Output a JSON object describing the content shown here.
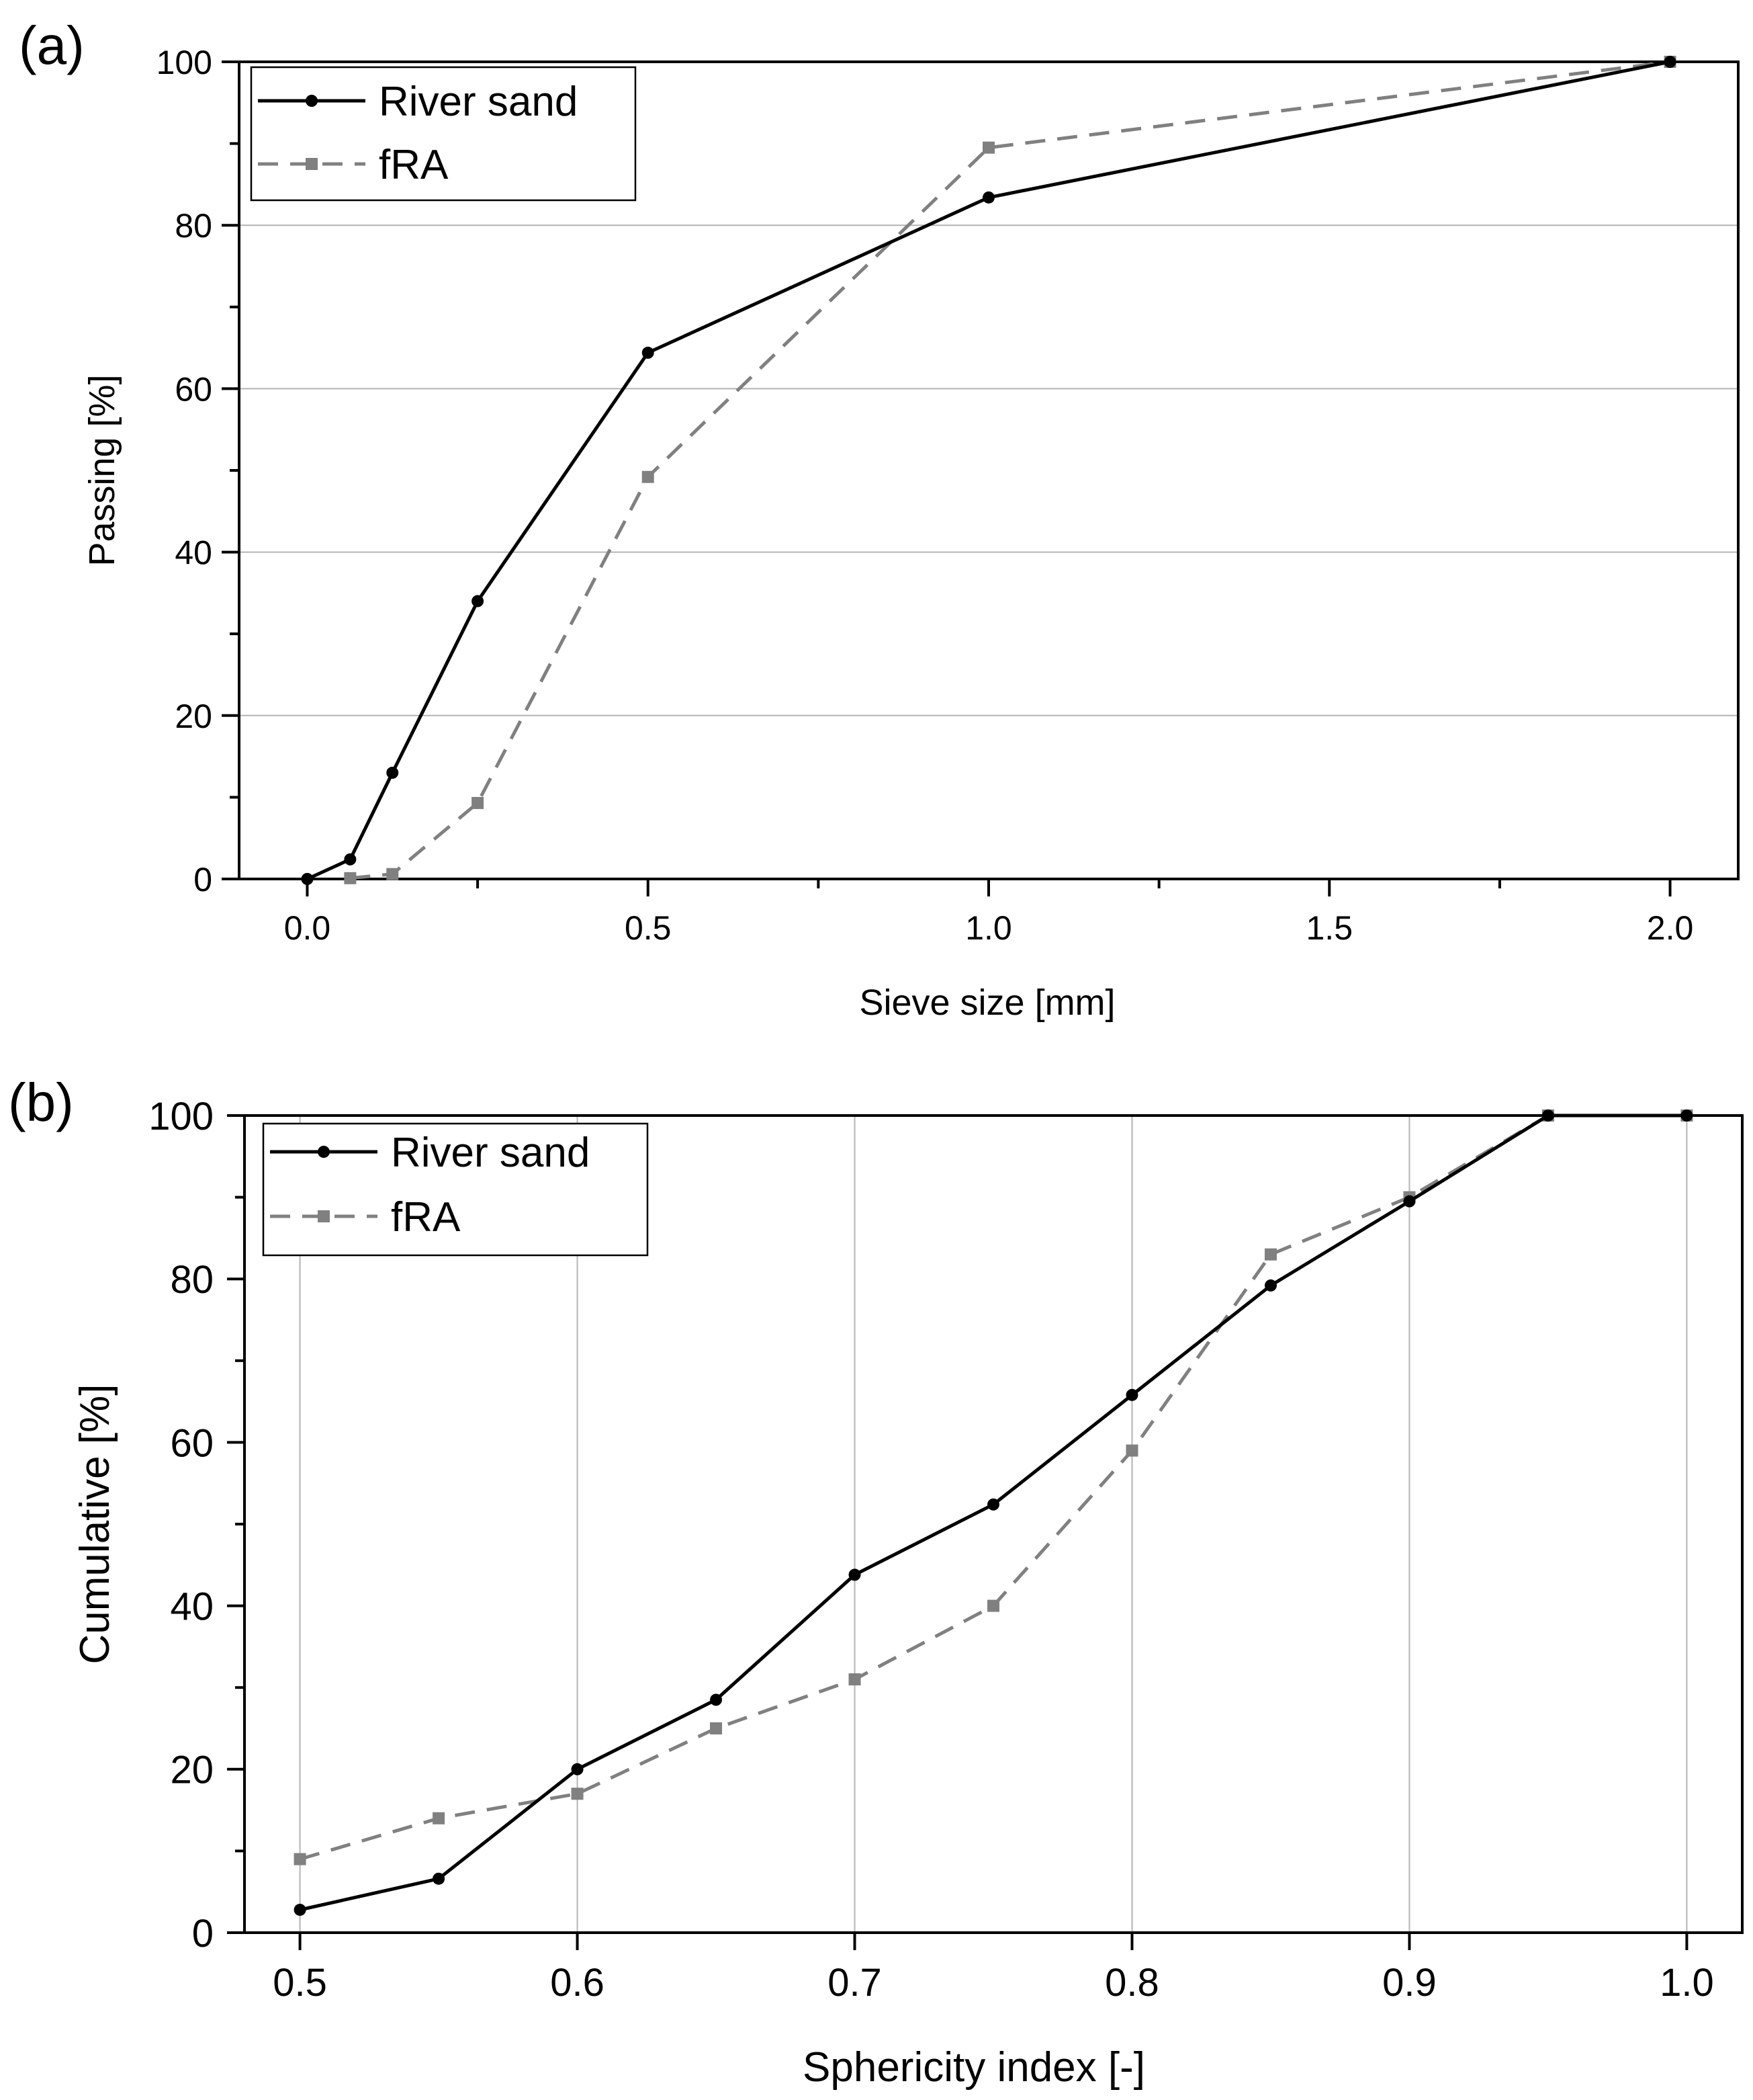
{
  "chart_data": [
    {
      "panel_label": "(a)",
      "type": "line",
      "xlabel": "Sieve size [mm]",
      "ylabel": "Passing [%]",
      "xlim": [
        -0.1,
        2.1
      ],
      "ylim": [
        0,
        100
      ],
      "xticks": [
        "0.0",
        "0.5",
        "1.0",
        "1.5",
        "2.0"
      ],
      "yticks": [
        "0",
        "20",
        "40",
        "60",
        "80",
        "100"
      ],
      "grid": "horizontal",
      "legend_position": "top-left",
      "series": [
        {
          "name": "River sand",
          "color": "#000000",
          "marker": "circle",
          "dash": "solid",
          "x": [
            0,
            0.063,
            0.125,
            0.25,
            0.5,
            1.0,
            2.0
          ],
          "y": [
            0,
            2.4,
            13.0,
            34.0,
            64.4,
            83.4,
            100
          ]
        },
        {
          "name": "fRA",
          "color": "#808080",
          "marker": "square",
          "dash": "dashed",
          "x": [
            0.063,
            0.125,
            0.25,
            0.5,
            1.0,
            2.0
          ],
          "y": [
            0.1,
            0.6,
            9.3,
            49.2,
            89.5,
            100
          ]
        }
      ]
    },
    {
      "panel_label": "(b)",
      "type": "line",
      "xlabel": "Sphericity index [-]",
      "ylabel": "Cumulative [%]",
      "xlim": [
        0.48,
        1.02
      ],
      "ylim": [
        0,
        100
      ],
      "xticks": [
        "0.5",
        "0.6",
        "0.7",
        "0.8",
        "0.9",
        "1.0"
      ],
      "yticks": [
        "0",
        "20",
        "40",
        "60",
        "80",
        "100"
      ],
      "grid": "vertical",
      "legend_position": "top-left",
      "series": [
        {
          "name": "River sand",
          "color": "#000000",
          "marker": "circle",
          "dash": "solid",
          "x": [
            0.5,
            0.55,
            0.6,
            0.65,
            0.7,
            0.75,
            0.8,
            0.85,
            0.9,
            0.95,
            1.0
          ],
          "y": [
            2.8,
            6.6,
            20.0,
            28.5,
            43.8,
            52.4,
            65.8,
            79.2,
            89.5,
            100,
            100
          ]
        },
        {
          "name": "fRA",
          "color": "#808080",
          "marker": "square",
          "dash": "dashed",
          "x": [
            0.5,
            0.55,
            0.6,
            0.65,
            0.7,
            0.75,
            0.8,
            0.85,
            0.9,
            0.95,
            1.0
          ],
          "y": [
            9.0,
            14.0,
            17.0,
            25.0,
            31.0,
            40.0,
            59.0,
            83.0,
            90.0,
            100,
            100
          ]
        }
      ]
    }
  ]
}
